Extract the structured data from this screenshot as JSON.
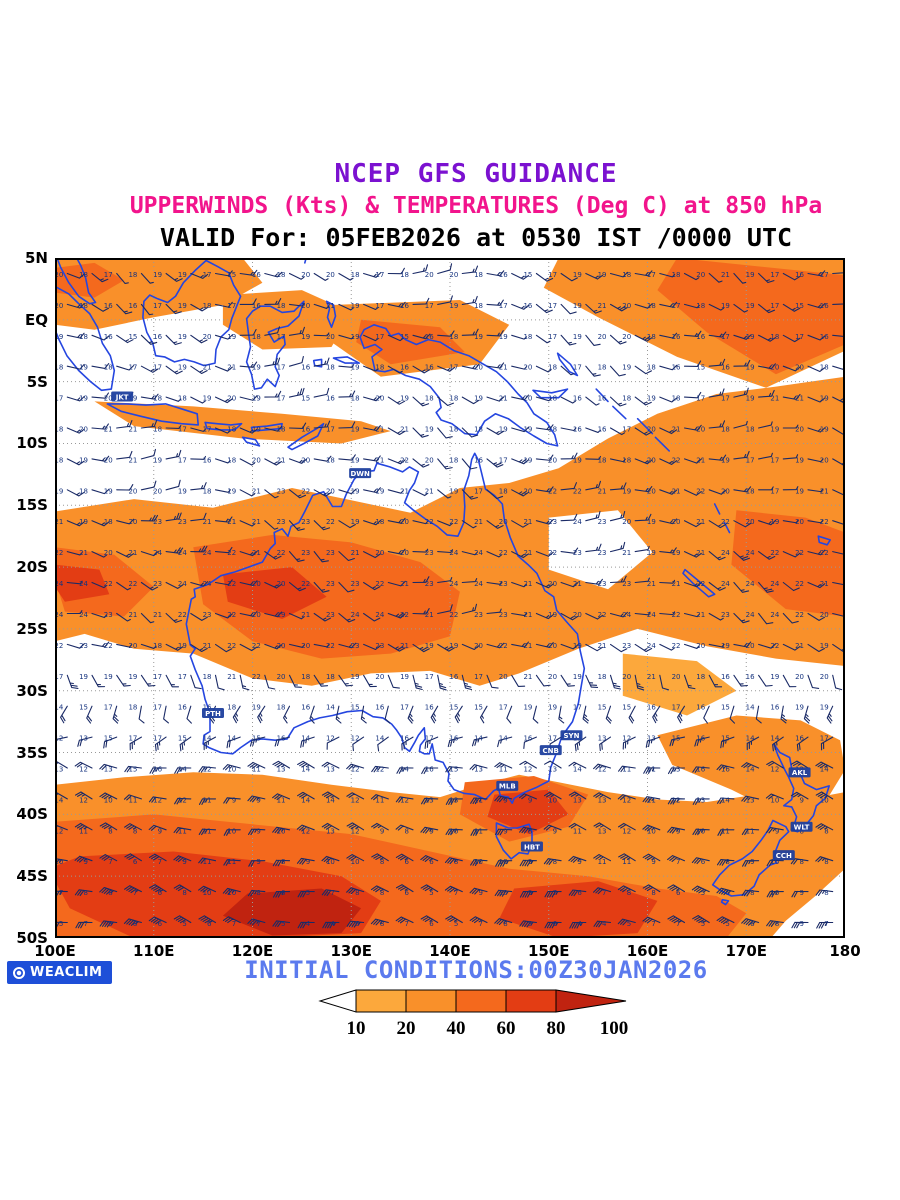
{
  "header": {
    "line1": "NCEP GFS GUIDANCE",
    "line2": "UPPERWINDS (Kts) & TEMPERATURES (Deg C) at 850 hPa",
    "line3": "VALID For: 05FEB2026 at 0530 IST /0000 UTC"
  },
  "map": {
    "lat_labels": [
      "5N",
      "EQ",
      "5S",
      "10S",
      "15S",
      "20S",
      "25S",
      "30S",
      "35S",
      "40S",
      "45S",
      "50S"
    ],
    "lon_labels": [
      "100E",
      "110E",
      "120E",
      "130E",
      "140E",
      "150E",
      "160E",
      "170E",
      "180"
    ],
    "lon_range": [
      100,
      180
    ],
    "lat_range": [
      5,
      -50
    ],
    "stations": [
      {
        "code": "JKT",
        "lon": 106.8,
        "lat": -6.2
      },
      {
        "code": "DWN",
        "lon": 130.9,
        "lat": -12.4
      },
      {
        "code": "PTH",
        "lon": 116.0,
        "lat": -31.8
      },
      {
        "code": "SYN",
        "lon": 152.3,
        "lat": -33.6
      },
      {
        "code": "CNB",
        "lon": 150.2,
        "lat": -34.8
      },
      {
        "code": "MLB",
        "lon": 145.8,
        "lat": -37.7
      },
      {
        "code": "HBT",
        "lon": 148.3,
        "lat": -42.6
      },
      {
        "code": "AKL",
        "lon": 175.4,
        "lat": -36.6
      },
      {
        "code": "WLT",
        "lon": 175.6,
        "lat": -41.0
      },
      {
        "code": "CCH",
        "lon": 173.8,
        "lat": -43.3
      }
    ],
    "wind_grid": {
      "lon_start": 101.25,
      "lon_end": 178.75,
      "lat_start": 3.75,
      "lat_end": -48.75,
      "step": 2.5,
      "temp_min": 4,
      "temp_max": 24,
      "units_wind": "Kts",
      "units_temp": "Deg C"
    }
  },
  "footer": {
    "initial_conditions": "INITIAL CONDITIONS:00Z30JAN2026",
    "logo_text": "WEACLIM"
  },
  "colorbar": {
    "labels": [
      "10",
      "20",
      "40",
      "60",
      "80",
      "100"
    ],
    "levels": [
      "#FFFFFF",
      "#FCA83C",
      "#F9902A",
      "#F4691D",
      "#E33D14",
      "#C02310"
    ]
  },
  "colors": {
    "title1": "#7B11D0",
    "title2": "#F2148C",
    "title3": "#000000",
    "footer_text": "#5B7AEE",
    "logo_bg": "#1E4FD8",
    "coastline": "#2546E0",
    "grid": "#999999",
    "barb": "#1A2A66",
    "temp_text": "#16337F",
    "station_bg": "#1E3F9E",
    "frame": "#000000"
  }
}
